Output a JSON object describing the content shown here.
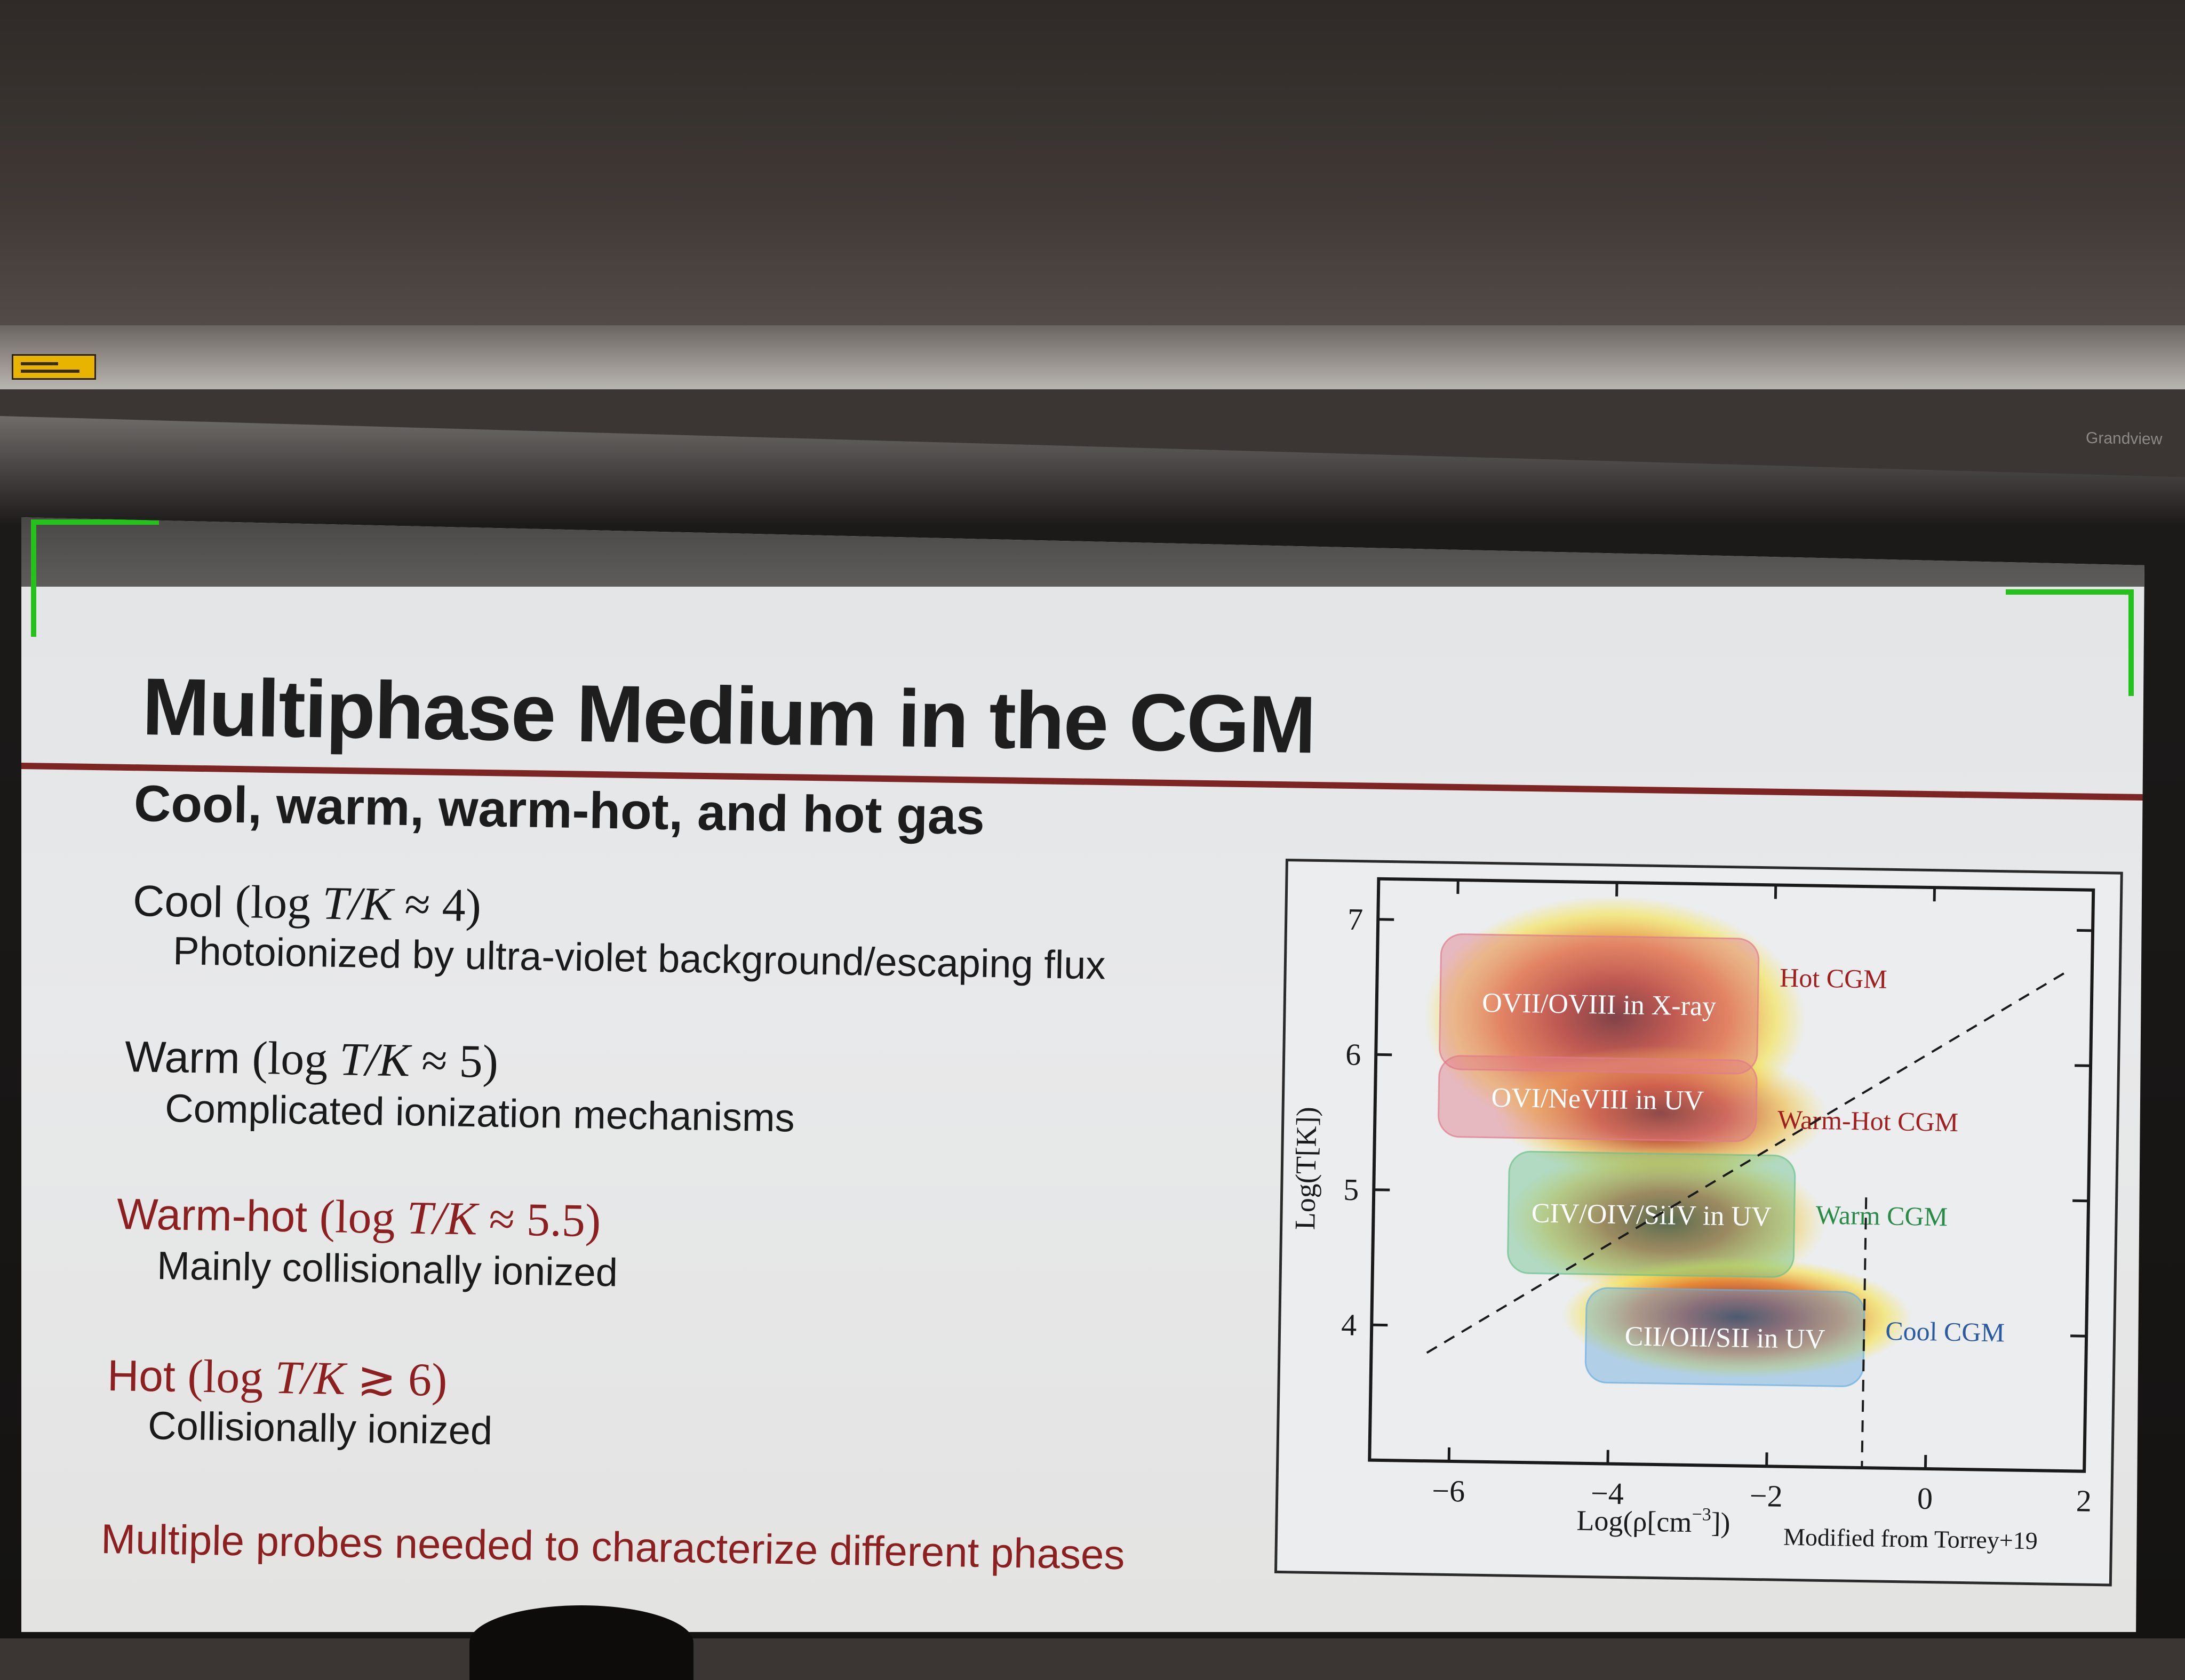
{
  "room": {
    "brand_label": "Grandview"
  },
  "slide": {
    "title": "Multiphase Medium in the CGM",
    "subtitle": "Cool, warm, warm-hot, and hot gas",
    "bullets": [
      {
        "label": "Cool",
        "open": "(log ",
        "var": "T/K",
        "rel": " ≈ 4)",
        "detail": "Photoionized by ultra-violet background/escaping flux"
      },
      {
        "label": "Warm",
        "open": "(log ",
        "var": "T/K",
        "rel": " ≈ 5)",
        "detail": "Complicated ionization mechanisms"
      },
      {
        "label": "Warm-hot",
        "open": "(log ",
        "var": "T/K",
        "rel": " ≈ 5.5)",
        "detail": "Mainly collisionally ionized"
      },
      {
        "label": "Hot",
        "open": "(log ",
        "var": "T/K",
        "rel": " ≳ 6)",
        "detail": "Collisionally ionized"
      }
    ],
    "conclusion": "Multiple probes needed to characterize different phases",
    "figure": {
      "credit": "Modified from Torrey+19",
      "xlabel_prefix": "Log(ρ[cm",
      "xlabel_exp": "−3",
      "xlabel_suffix": "])",
      "ylabel": "Log(T[K])",
      "xticks": [
        "−6",
        "−4",
        "−2",
        "0",
        "2"
      ],
      "yticks": [
        "7",
        "6",
        "5",
        "4"
      ],
      "boxes": [
        {
          "label": "OVII/OVIII in X-ray",
          "color": "#e07a8a"
        },
        {
          "label": "OVI/NeVIII in UV",
          "color": "#e07a8a"
        },
        {
          "label": "CIV/OIV/SiIV in UV",
          "color": "#6cc08a"
        },
        {
          "label": "CII/OII/SII in UV",
          "color": "#6aaee0"
        }
      ],
      "phase_labels": [
        {
          "label": "Hot CGM",
          "color": "#a02020"
        },
        {
          "label": "Warm-Hot CGM",
          "color": "#a02020"
        },
        {
          "label": "Warm CGM",
          "color": "#2a8a4a"
        },
        {
          "label": "Cool CGM",
          "color": "#2a5aa0"
        }
      ]
    }
  },
  "chart_data": {
    "type": "heatmap",
    "title": "",
    "xlabel": "Log(ρ[cm^-3])",
    "ylabel": "Log(T[K])",
    "xlim": [
      -7,
      2
    ],
    "ylim": [
      3,
      7.3
    ],
    "x_ticks": [
      -6,
      -4,
      -2,
      0,
      2
    ],
    "y_ticks": [
      4,
      5,
      6,
      7
    ],
    "regions": [
      {
        "label": "OVII/OVIII in X-ray",
        "x": [
          -6.2,
          -2.2
        ],
        "y": [
          5.9,
          6.9
        ],
        "phase": "Hot CGM"
      },
      {
        "label": "OVI/NeVIII in UV",
        "x": [
          -6.2,
          -2.2
        ],
        "y": [
          5.4,
          6.0
        ],
        "phase": "Warm-Hot CGM"
      },
      {
        "label": "CIV/OIV/SiIV in UV",
        "x": [
          -5.3,
          -1.7
        ],
        "y": [
          4.4,
          5.3
        ],
        "phase": "Warm CGM"
      },
      {
        "label": "CII/OII/SII in UV",
        "x": [
          -4.3,
          -0.8
        ],
        "y": [
          3.6,
          4.3
        ],
        "phase": "Cool CGM"
      }
    ],
    "dashed_lines": [
      {
        "from": [
          -6.3,
          3.8
        ],
        "to": [
          1.7,
          6.7
        ]
      },
      {
        "from": [
          -0.8,
          5.0
        ],
        "to": [
          -0.8,
          3.0
        ]
      }
    ]
  }
}
